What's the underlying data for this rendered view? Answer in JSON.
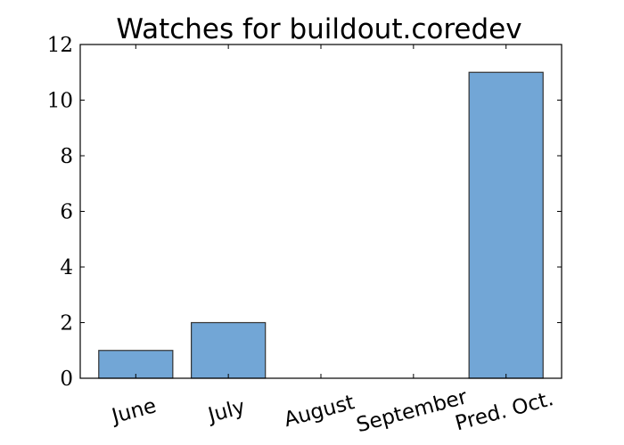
{
  "chart_data": {
    "type": "bar",
    "title": "Watches for buildout.coredev",
    "xlabel": "",
    "ylabel": "",
    "categories": [
      "June",
      "July",
      "August",
      "September",
      "Pred. Oct."
    ],
    "values": [
      1,
      2,
      0,
      0,
      11
    ],
    "ylim": [
      0,
      12
    ],
    "yticks": [
      "0",
      "2",
      "4",
      "6",
      "8",
      "10",
      "12"
    ],
    "grid": false,
    "bar_color": "#72a6d6",
    "bar_edge_color": "#333333"
  }
}
